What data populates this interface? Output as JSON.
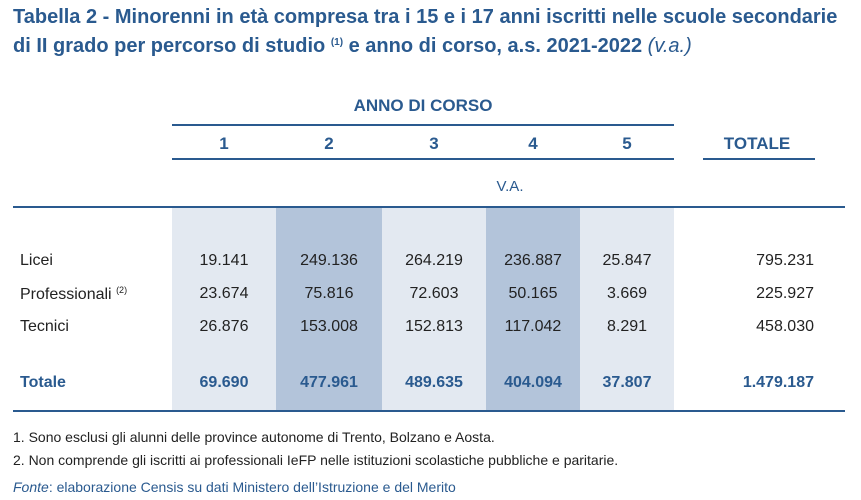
{
  "title": {
    "line1": "Tabella 2 - Minorenni in età compresa tra i 15 e i 17 anni iscritti nelle scuole secondarie",
    "line2": "di II grado per percorso di studio",
    "note_ref": "(1)",
    "line2_end": "e anno di corso, a.s. 2021-2022",
    "unit": "(v.a.)"
  },
  "header": {
    "group_label": "ANNO DI CORSO",
    "years": [
      "1",
      "2",
      "3",
      "4",
      "5"
    ],
    "total_label": "TOTALE",
    "sub_label": "V.A."
  },
  "rows": [
    {
      "label": "Licei",
      "note_ref": "",
      "values": [
        "19.141",
        "249.136",
        "264.219",
        "236.887",
        "25.847"
      ],
      "total": "795.231"
    },
    {
      "label": "Professionali",
      "note_ref": "(2)",
      "values": [
        "23.674",
        "75.816",
        "72.603",
        "50.165",
        "3.669"
      ],
      "total": "225.927"
    },
    {
      "label": "Tecnici",
      "note_ref": "",
      "values": [
        "26.876",
        "153.008",
        "152.813",
        "117.042",
        "8.291"
      ],
      "total": "458.030"
    }
  ],
  "total_row": {
    "label": "Totale",
    "values": [
      "69.690",
      "477.961",
      "489.635",
      "404.094",
      "37.807"
    ],
    "total": "1.479.187"
  },
  "notes": [
    "1. Sono esclusi gli alunni delle province autonome di Trento, Bolzano e Aosta.",
    "2. Non comprende gli iscritti ai professionali IeFP nelle istituzioni scolastiche pubbliche e paritarie."
  ],
  "source": {
    "label": "Fonte",
    "text": ": elaborazione Censis su dati Ministero dell’Istruzione e del Merito"
  },
  "colors": {
    "accent": "#2a5a8f",
    "band_light": "#e3e9f1",
    "band_dark": "#b3c4da"
  }
}
